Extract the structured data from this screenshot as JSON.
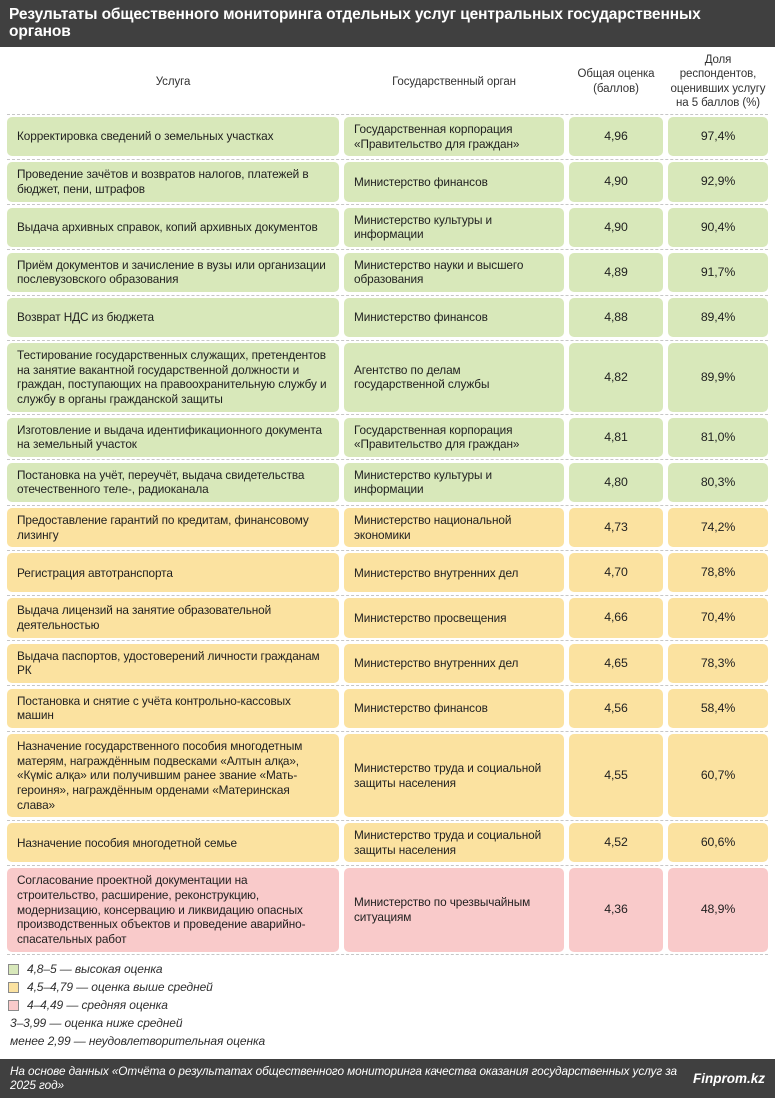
{
  "title": "Результаты общественного мониторинга отдельных услуг центральных государственных органов",
  "columns": {
    "service": "Услуга",
    "agency": "Государственный орган",
    "score": "Общая оценка (баллов)",
    "share": "Доля респондентов, оценивших услугу на 5 баллов (%)"
  },
  "rows": [
    {
      "service": "Корректировка сведений о земельных участках",
      "agency": "Государственная корпорация «Правительство для граждан»",
      "score": "4,96",
      "share": "97,4%",
      "tier": "green"
    },
    {
      "service": "Проведение зачётов и возвратов налогов, платежей в бюджет, пени, штрафов",
      "agency": "Министерство финансов",
      "score": "4,90",
      "share": "92,9%",
      "tier": "green"
    },
    {
      "service": "Выдача архивных справок, копий архивных документов",
      "agency": "Министерство культуры и информации",
      "score": "4,90",
      "share": "90,4%",
      "tier": "green"
    },
    {
      "service": "Приём документов и зачисление в вузы или организации послевузовского образования",
      "agency": "Министерство науки и высшего образования",
      "score": "4,89",
      "share": "91,7%",
      "tier": "green"
    },
    {
      "service": "Возврат НДС из бюджета",
      "agency": "Министерство финансов",
      "score": "4,88",
      "share": "89,4%",
      "tier": "green"
    },
    {
      "service": "Тестирование государственных служащих, претендентов на занятие вакантной государственной должности и граждан, поступающих на правоохранительную службу и службу в органы гражданской защиты",
      "agency": "Агентство по делам государственной службы",
      "score": "4,82",
      "share": "89,9%",
      "tier": "green"
    },
    {
      "service": "Изготовление и выдача идентификационного документа на земельный участок",
      "agency": "Государственная корпорация «Правительство для граждан»",
      "score": "4,81",
      "share": "81,0%",
      "tier": "green"
    },
    {
      "service": "Постановка на учёт, переучёт, выдача свидетельства отечественного теле-, радиоканала",
      "agency": "Министерство культуры и информации",
      "score": "4,80",
      "share": "80,3%",
      "tier": "green"
    },
    {
      "service": "Предоставление гарантий по кредитам, финансовому лизингу",
      "agency": "Министерство национальной экономики",
      "score": "4,73",
      "share": "74,2%",
      "tier": "yellow"
    },
    {
      "service": "Регистрация автотранспорта",
      "agency": "Министерство внутренних дел",
      "score": "4,70",
      "share": "78,8%",
      "tier": "yellow"
    },
    {
      "service": "Выдача лицензий на занятие образовательной деятельностью",
      "agency": "Министерство просвещения",
      "score": "4,66",
      "share": "70,4%",
      "tier": "yellow"
    },
    {
      "service": "Выдача паспортов, удостоверений личности гражданам РК",
      "agency": "Министерство внутренних дел",
      "score": "4,65",
      "share": "78,3%",
      "tier": "yellow"
    },
    {
      "service": "Постановка и снятие с учёта контрольно-кассовых машин",
      "agency": "Министерство финансов",
      "score": "4,56",
      "share": "58,4%",
      "tier": "yellow"
    },
    {
      "service": "Назначение государственного пособия многодетным матерям, награждённым подвесками «Алтын алқа», «Күміс алқа» или получившим ранее звание «Мать-героиня», награждённым орденами «Материнская слава»",
      "agency": "Министерство труда и социальной защиты населения",
      "score": "4,55",
      "share": "60,7%",
      "tier": "yellow"
    },
    {
      "service": "Назначение пособия многодетной семье",
      "agency": "Министерство труда и социальной защиты населения",
      "score": "4,52",
      "share": "60,6%",
      "tier": "yellow"
    },
    {
      "service": "Согласование проектной документации на строительство, расширение, реконструкцию, модернизацию, консервацию и ликвидацию опасных производственных объектов и проведение аварийно-спасательных работ",
      "agency": "Министерство по чрезвычайным ситуациям",
      "score": "4,36",
      "share": "48,9%",
      "tier": "pink"
    }
  ],
  "legend": [
    {
      "swatch": "green",
      "label": "4,8–5 — высокая оценка"
    },
    {
      "swatch": "yellow",
      "label": "4,5–4,79 — оценка выше средней"
    },
    {
      "swatch": "pink",
      "label": "4–4,49 — средняя оценка"
    },
    {
      "swatch": null,
      "label": "3–3,99 — оценка ниже средней"
    },
    {
      "swatch": null,
      "label": "менее 2,99 — неудовлетворительная оценка"
    }
  ],
  "footer": {
    "source": "На основе данных «Отчёта о результатах общественного мониторинга качества оказания государственных услуг за 2025 год»",
    "brand": "Finprom.kz"
  },
  "colors": {
    "bar": "#404040",
    "green": "#d8e8ba",
    "yellow": "#fbe2a0",
    "pink": "#f9caca"
  },
  "chart_data": {
    "type": "table",
    "title": "Результаты общественного мониторинга отдельных услуг центральных государственных органов",
    "columns": [
      "Услуга",
      "Государственный орган",
      "Общая оценка (баллов)",
      "Доля респондентов, оценивших услугу на 5 баллов (%)"
    ],
    "rows": [
      [
        "Корректировка сведений о земельных участках",
        "Государственная корпорация «Правительство для граждан»",
        4.96,
        97.4
      ],
      [
        "Проведение зачётов и возвратов налогов, платежей в бюджет, пени, штрафов",
        "Министерство финансов",
        4.9,
        92.9
      ],
      [
        "Выдача архивных справок, копий архивных документов",
        "Министерство культуры и информации",
        4.9,
        90.4
      ],
      [
        "Приём документов и зачисление в вузы или организации послевузовского образования",
        "Министерство науки и высшего образования",
        4.89,
        91.7
      ],
      [
        "Возврат НДС из бюджета",
        "Министерство финансов",
        4.88,
        89.4
      ],
      [
        "Тестирование государственных служащих, претендентов на занятие вакантной государственной должности и граждан, поступающих на правоохранительную службу и службу в органы гражданской защиты",
        "Агентство по делам государственной службы",
        4.82,
        89.9
      ],
      [
        "Изготовление и выдача идентификационного документа на земельный участок",
        "Государственная корпорация «Правительство для граждан»",
        4.81,
        81.0
      ],
      [
        "Постановка на учёт, переучёт, выдача свидетельства отечественного теле-, радиоканала",
        "Министерство культуры и информации",
        4.8,
        80.3
      ],
      [
        "Предоставление гарантий по кредитам, финансовому лизингу",
        "Министерство национальной экономики",
        4.73,
        74.2
      ],
      [
        "Регистрация автотранспорта",
        "Министерство внутренних дел",
        4.7,
        78.8
      ],
      [
        "Выдача лицензий на занятие образовательной деятельностью",
        "Министерство просвещения",
        4.66,
        70.4
      ],
      [
        "Выдача паспортов, удостоверений личности гражданам РК",
        "Министерство внутренних дел",
        4.65,
        78.3
      ],
      [
        "Постановка и снятие с учёта контрольно-кассовых машин",
        "Министерство финансов",
        4.56,
        58.4
      ],
      [
        "Назначение государственного пособия многодетным матерям, награждённым подвесками «Алтын алқа», «Күміс алқа» или получившим ранее звание «Мать-героиня», награждённым орденами «Материнская слава»",
        "Министерство труда и социальной защиты населения",
        4.55,
        60.7
      ],
      [
        "Назначение пособия многодетной семье",
        "Министерство труда и социальной защиты населения",
        4.52,
        60.6
      ],
      [
        "Согласование проектной документации на строительство, расширение, реконструкцию, модернизацию, консервацию и ликвидацию опасных производственных объектов и проведение аварийно-спасательных работ",
        "Министерство по чрезвычайным ситуациям",
        4.36,
        48.9
      ]
    ],
    "score_tiers": {
      "green": "4,8–5",
      "yellow": "4,5–4,79",
      "pink": "4–4,49"
    },
    "legend_position": "bottom-left"
  }
}
